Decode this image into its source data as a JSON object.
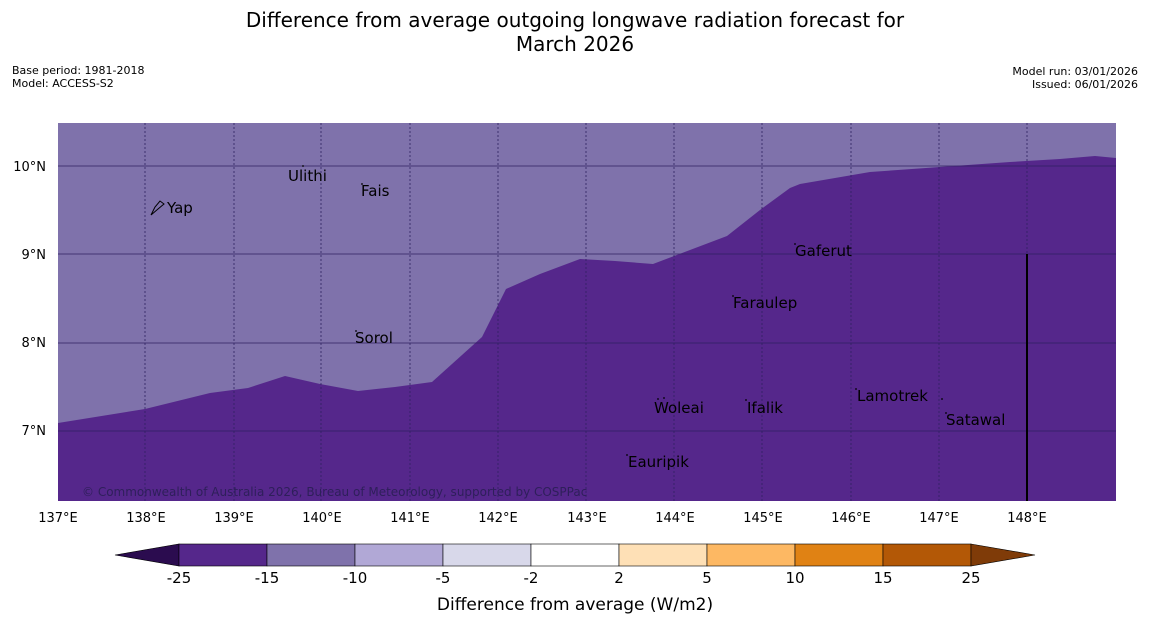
{
  "title_line1": "Difference from average outgoing longwave radiation forecast for",
  "title_line2": "March 2026",
  "base_period": "Base period: 1981-2018",
  "model": "Model: ACCESS-S2",
  "model_run": "Model run: 03/01/2026",
  "issued": "Issued: 06/01/2026",
  "copyright": "© Commonwealth of Australia 2026, Bureau of Meteorology, supported by COSPPac",
  "map": {
    "lon_labels": [
      "137°E",
      "138°E",
      "139°E",
      "140°E",
      "141°E",
      "142°E",
      "143°E",
      "144°E",
      "145°E",
      "146°E",
      "147°E",
      "148°E"
    ],
    "lat_labels": [
      "10°N",
      "9°N",
      "8°N",
      "7°N"
    ],
    "places": {
      "yap": "Yap",
      "ulithi": "Ulithi",
      "fais": "Fais",
      "sorol": "Sorol",
      "gaferut": "Gaferut",
      "faraulep": "Faraulep",
      "woleai": "Woleai",
      "ifalik": "Ifalik",
      "lamotrek": "Lamotrek",
      "satawal": "Satawal",
      "eauripik": "Eauripik"
    },
    "colors": {
      "band_minus25_to_minus15": "#55278b",
      "band_minus15_to_minus10": "#7f72ab",
      "grid": "#2f2160"
    }
  },
  "colorbar": {
    "title": "Difference from average (W/m2)",
    "ticks": [
      "-25",
      "-15",
      "-10",
      "-5",
      "-2",
      "2",
      "5",
      "10",
      "15",
      "25"
    ],
    "colors": [
      "#2b0c4f",
      "#55278b",
      "#7f72ab",
      "#b1a8d6",
      "#d8d8ea",
      "#ffffff",
      "#fee0b6",
      "#fdb863",
      "#e08214",
      "#b35806",
      "#7f3b08"
    ]
  }
}
